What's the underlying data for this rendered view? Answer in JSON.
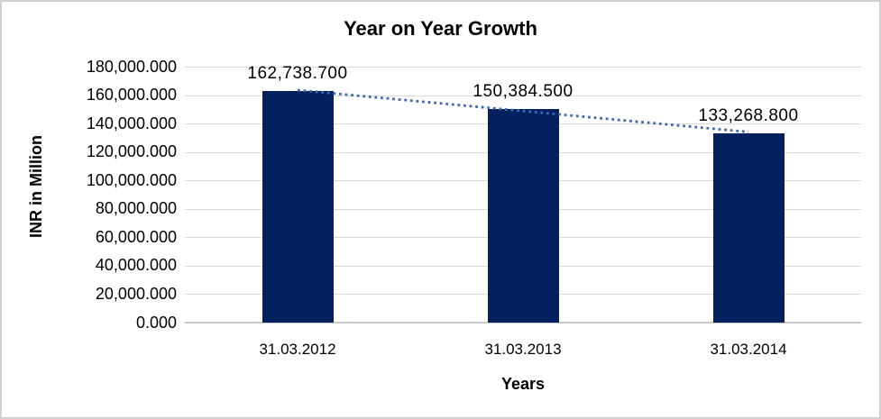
{
  "chart_data": {
    "type": "bar",
    "title": "Year on Year Growth",
    "xlabel": "Years",
    "ylabel": "INR in Million",
    "categories": [
      "31.03.2012",
      "31.03.2013",
      "31.03.2014"
    ],
    "values": [
      162738.7,
      150384.5,
      133268.8
    ],
    "value_labels": [
      "162,738.700",
      "150,384.500",
      "133,268.800"
    ],
    "ylim": [
      0,
      180000
    ],
    "ytick_step": 20000,
    "ytick_labels": [
      "180,000.000",
      "160,000.000",
      "140,000.000",
      "120,000.000",
      "100,000.000",
      "80,000.000",
      "60,000.000",
      "40,000.000",
      "20,000.000",
      "0.000"
    ],
    "grid": true,
    "legend": "none",
    "bar_color": "#04215f",
    "gridline_color": "#d9d9d9",
    "trendline": {
      "type": "linear",
      "style": "dotted",
      "color": "#3e68b0",
      "start_value": 163532.3,
      "end_value": 134062.4
    }
  }
}
